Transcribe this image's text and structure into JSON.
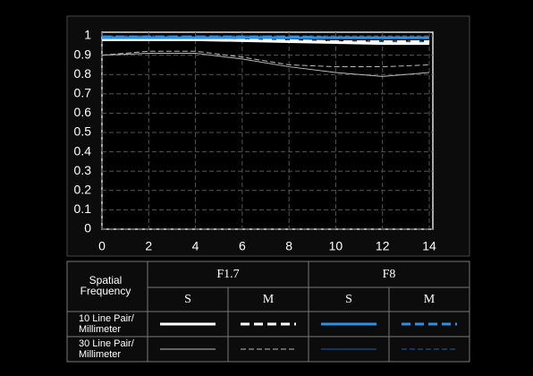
{
  "chart_data": {
    "type": "line",
    "x": [
      0,
      2,
      4,
      6,
      8,
      10,
      12,
      14
    ],
    "xlim": [
      0,
      14
    ],
    "xticks": [
      0,
      2,
      4,
      6,
      8,
      10,
      12,
      14
    ],
    "ylim": [
      0,
      1
    ],
    "yticks": [
      0,
      0.1,
      0.2,
      0.3,
      0.4,
      0.5,
      0.6,
      0.7,
      0.8,
      0.9,
      1
    ],
    "grid": true,
    "series": [
      {
        "color": "#ffffff",
        "dashed": false,
        "width": 3,
        "values": [
          0.98,
          0.98,
          0.98,
          0.975,
          0.97,
          0.965,
          0.96,
          0.96
        ]
      },
      {
        "color": "#ffffff",
        "dashed": true,
        "width": 3,
        "values": [
          0.98,
          0.985,
          0.985,
          0.98,
          0.975,
          0.97,
          0.97,
          0.97
        ]
      },
      {
        "color": "#2f8fe0",
        "dashed": false,
        "width": 3,
        "values": [
          0.99,
          0.99,
          0.99,
          0.99,
          0.99,
          0.99,
          0.99,
          0.99
        ]
      },
      {
        "color": "#2f8fe0",
        "dashed": true,
        "width": 3,
        "values": [
          0.995,
          0.995,
          0.995,
          0.995,
          0.995,
          0.99,
          0.99,
          0.99
        ]
      },
      {
        "color": "#bbbbbb",
        "dashed": false,
        "width": 1,
        "values": [
          0.9,
          0.91,
          0.91,
          0.88,
          0.84,
          0.81,
          0.79,
          0.81
        ]
      },
      {
        "color": "#bbbbbb",
        "dashed": true,
        "width": 1,
        "values": [
          0.9,
          0.92,
          0.92,
          0.89,
          0.85,
          0.84,
          0.84,
          0.85
        ]
      },
      {
        "color": "#1e5fa0",
        "dashed": false,
        "width": 1,
        "values": [
          0.98,
          0.98,
          0.98,
          0.975,
          0.975,
          0.97,
          0.97,
          0.97
        ]
      },
      {
        "color": "#1e5fa0",
        "dashed": true,
        "width": 1,
        "values": [
          0.985,
          0.985,
          0.985,
          0.98,
          0.98,
          0.975,
          0.975,
          0.975
        ]
      }
    ]
  },
  "table": {
    "corner": "Spatial\nFrequency",
    "groups": [
      "F1.7",
      "F8"
    ],
    "subheads": [
      "S",
      "M",
      "S",
      "M"
    ],
    "rows": [
      "10 Line Pair/\nMillimeter",
      "30 Line Pair/\nMillimeter"
    ]
  }
}
